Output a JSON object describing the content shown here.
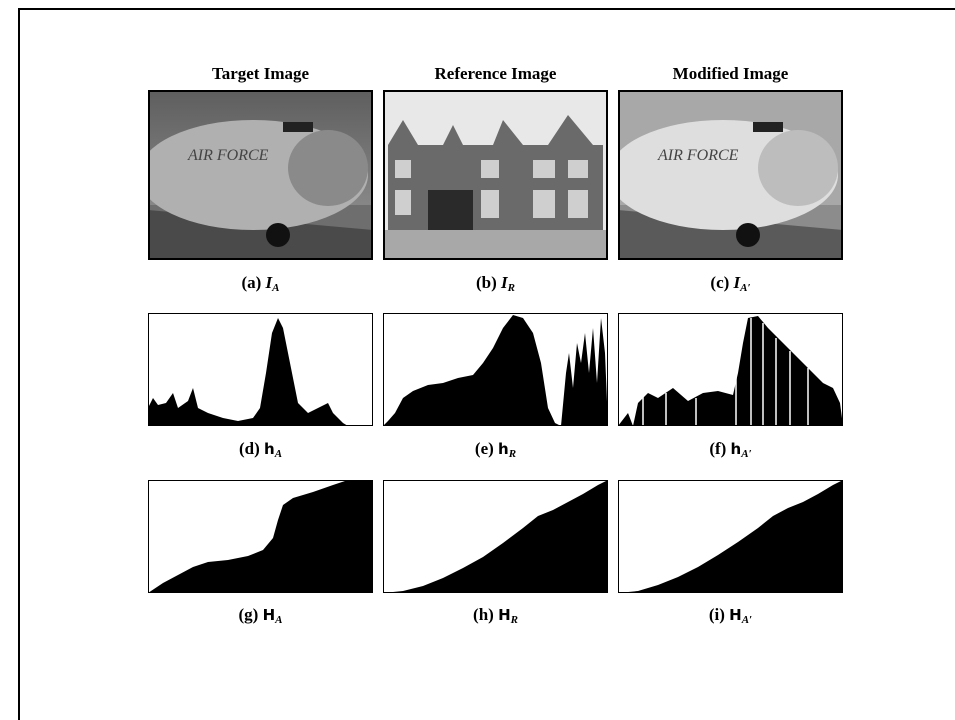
{
  "columns": [
    {
      "title": "Target Image"
    },
    {
      "title": "Reference Image"
    },
    {
      "title": "Modified Image"
    }
  ],
  "image_captions": [
    {
      "label": "(a)",
      "symbol": "I",
      "subscript": "A"
    },
    {
      "label": "(b)",
      "symbol": "I",
      "subscript": "R"
    },
    {
      "label": "(c)",
      "symbol": "I",
      "subscript": "A′"
    }
  ],
  "histogram_captions": [
    {
      "label": "(d)",
      "symbol": "h",
      "subscript": "A"
    },
    {
      "label": "(e)",
      "symbol": "h",
      "subscript": "R"
    },
    {
      "label": "(f)",
      "symbol": "h",
      "subscript": "A′"
    }
  ],
  "cumulative_captions": [
    {
      "label": "(g)",
      "symbol": "H",
      "subscript": "A"
    },
    {
      "label": "(h)",
      "symbol": "H",
      "subscript": "R"
    },
    {
      "label": "(i)",
      "symbol": "H",
      "subscript": "A′"
    }
  ]
}
